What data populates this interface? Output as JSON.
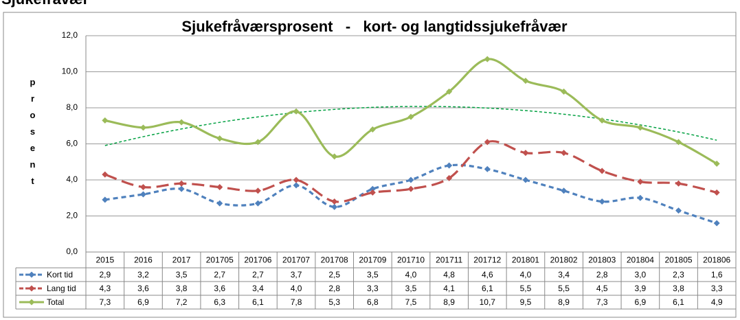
{
  "header_title": "Sjukefravær",
  "chart_data": {
    "type": "line",
    "title": "Sjukefråværsprosent   -   kort- og langtidssjukefråvær",
    "y_label": "prosent",
    "categories": [
      "2015",
      "2016",
      "2017",
      "201705",
      "201706",
      "201707",
      "201708",
      "201709",
      "201710",
      "201711",
      "201712",
      "201801",
      "201802",
      "201803",
      "201804",
      "201805",
      "201806"
    ],
    "series": [
      {
        "name": "Kort tid",
        "color": "#4f81bd",
        "dash": "7,5",
        "values": [
          2.9,
          3.2,
          3.5,
          2.7,
          2.7,
          3.7,
          2.5,
          3.5,
          4.0,
          4.8,
          4.6,
          4.0,
          3.4,
          2.8,
          3.0,
          2.3,
          1.6
        ],
        "value_labels": [
          "2,9",
          "3,2",
          "3,5",
          "2,7",
          "2,7",
          "3,7",
          "2,5",
          "3,5",
          "4,0",
          "4,8",
          "4,6",
          "4,0",
          "3,4",
          "2,8",
          "3,0",
          "2,3",
          "1,6"
        ]
      },
      {
        "name": "Lang tid",
        "color": "#c0504d",
        "dash": "18,8",
        "values": [
          4.3,
          3.6,
          3.8,
          3.6,
          3.4,
          4.0,
          2.8,
          3.3,
          3.5,
          4.1,
          6.1,
          5.5,
          5.5,
          4.5,
          3.9,
          3.8,
          3.3
        ],
        "value_labels": [
          "4,3",
          "3,6",
          "3,8",
          "3,6",
          "3,4",
          "4,0",
          "2,8",
          "3,3",
          "3,5",
          "4,1",
          "6,1",
          "5,5",
          "5,5",
          "4,5",
          "3,9",
          "3,8",
          "3,3"
        ]
      },
      {
        "name": "Total",
        "color": "#9bbb59",
        "dash": "none",
        "values": [
          7.3,
          6.9,
          7.2,
          6.3,
          6.1,
          7.8,
          5.3,
          6.8,
          7.5,
          8.9,
          10.7,
          9.5,
          8.9,
          7.3,
          6.9,
          6.1,
          4.9
        ],
        "value_labels": [
          "7,3",
          "6,9",
          "7,2",
          "6,3",
          "6,1",
          "7,8",
          "5,3",
          "6,8",
          "7,5",
          "8,9",
          "10,7",
          "9,5",
          "8,9",
          "7,3",
          "6,9",
          "6,1",
          "4,9"
        ]
      }
    ],
    "trendline": {
      "series_index": 2,
      "type": "polynomial",
      "order": 2,
      "color": "#00a040"
    },
    "ylim": [
      0,
      12
    ],
    "yticks": [
      {
        "value": 0,
        "label": "0,0"
      },
      {
        "value": 2,
        "label": "2,0"
      },
      {
        "value": 4,
        "label": "4,0"
      },
      {
        "value": 6,
        "label": "6,0"
      },
      {
        "value": 8,
        "label": "8,0"
      },
      {
        "value": 10,
        "label": "10,0"
      },
      {
        "value": 12,
        "label": "12,0"
      }
    ],
    "grid": true,
    "data_table": true
  }
}
